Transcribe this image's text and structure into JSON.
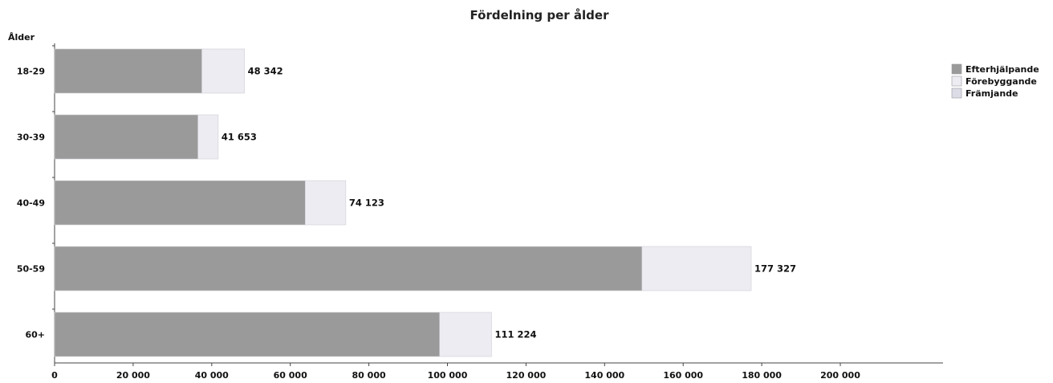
{
  "chart_data": {
    "type": "bar",
    "orientation": "horizontal",
    "stacked": true,
    "title": "Fördelning per ålder",
    "ylabel": "Ålder",
    "xlabel": "",
    "categories": [
      "18-29",
      "30-39",
      "40-49",
      "50-59",
      "60+"
    ],
    "series": [
      {
        "name": "Efterhjälpande",
        "color": "#9a9a9a",
        "values": [
          37500,
          36500,
          63800,
          149500,
          98000
        ]
      },
      {
        "name": "Förebyggande",
        "color": "#ececf2",
        "values": [
          10842,
          5153,
          10323,
          27827,
          13224
        ]
      },
      {
        "name": "Främjande",
        "color": "#dcdce6",
        "values": [
          0,
          0,
          0,
          0,
          0
        ]
      }
    ],
    "totals": [
      "48 342",
      "41 653",
      "74 123",
      "177 327",
      "111 224"
    ],
    "xlim": [
      0,
      220000
    ],
    "xticks": [
      0,
      20000,
      40000,
      60000,
      80000,
      100000,
      120000,
      140000,
      160000,
      180000,
      200000
    ],
    "xtick_labels": [
      "0",
      "20 000",
      "40 000",
      "60 000",
      "80 000",
      "100 000",
      "120 000",
      "140 000",
      "160 000",
      "180 000",
      "200 000"
    ],
    "legend_position": "top-right",
    "grid": false
  }
}
